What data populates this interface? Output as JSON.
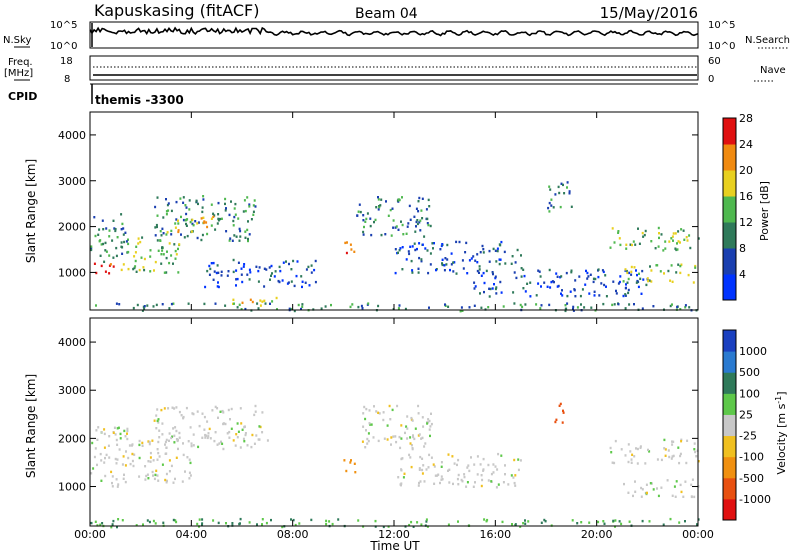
{
  "header": {
    "station": "Kapuskasing (fitACF)",
    "beam": "Beam 04",
    "date": "15/May/2016"
  },
  "summary": {
    "nsky_label": "N.Sky",
    "nsky_ticks": [
      "10^5",
      "10^0"
    ],
    "nsearch_label": "N.Search",
    "nsearch_ticks": [
      "10^5",
      "10^0"
    ],
    "freq_label_1": "Freq.",
    "freq_label_2": "[MHz]",
    "freq_ticks": [
      "18",
      "8"
    ],
    "nave_label": "Nave",
    "nave_ticks": [
      "60",
      "0"
    ],
    "cpid_label": "CPID",
    "cpid_value": "themis -3300"
  },
  "axes": {
    "xlabel": "Time UT",
    "ylabel": "Slant Range [km]",
    "x_ticks": [
      "00:00",
      "04:00",
      "08:00",
      "12:00",
      "16:00",
      "20:00",
      "00:00"
    ],
    "y_ticks": [
      "1000",
      "2000",
      "3000",
      "4000"
    ],
    "xlim_hours": [
      0,
      24
    ],
    "ylim_km": [
      180,
      4500
    ]
  },
  "colorbars": {
    "power": {
      "label": "Power [dB]",
      "ticks": [
        "4",
        "8",
        "12",
        "16",
        "20",
        "24",
        "28"
      ],
      "colors": [
        "#0033ff",
        "#1a3fb0",
        "#2f7a5a",
        "#4fb84f",
        "#e8d020",
        "#f08a10",
        "#e01010"
      ]
    },
    "velocity": {
      "label": "Velocity [m s",
      "label_sup": "-1",
      "label_end": "]",
      "ticks": [
        "1000",
        "500",
        "100",
        "25",
        "-25",
        "-100",
        "-500",
        "-1000"
      ],
      "colors": [
        "#1a40c0",
        "#2a7ad0",
        "#2f7a5a",
        "#5ec84a",
        "#c8c8c8",
        "#f0c020",
        "#f09010",
        "#e85010",
        "#e01010"
      ]
    }
  },
  "chart_data": {
    "type": "heatmap",
    "title": "Kapuskasing (fitACF)   Beam 04   15/May/2016",
    "xlabel": "Time UT",
    "ylabel": "Slant Range [km]",
    "xlim": [
      0,
      24
    ],
    "ylim": [
      180,
      4500
    ],
    "panels": [
      {
        "name": "Power",
        "unit": "dB",
        "colorbar_ticks": [
          4,
          8,
          12,
          16,
          20,
          24,
          28
        ],
        "echo_regions": [
          {
            "t": [
              0.0,
              0.9
            ],
            "r": [
              950,
              1250
            ],
            "level": 28
          },
          {
            "t": [
              0.0,
              1.5
            ],
            "r": [
              1250,
              2300
            ],
            "level": 12
          },
          {
            "t": [
              1.2,
              3.5
            ],
            "r": [
              1000,
              1800
            ],
            "level": 16
          },
          {
            "t": [
              2.5,
              6.5
            ],
            "r": [
              1700,
              2700
            ],
            "level": 12
          },
          {
            "t": [
              3.0,
              5.0
            ],
            "r": [
              1900,
              2300
            ],
            "level": 20
          },
          {
            "t": [
              4.5,
              9.0
            ],
            "r": [
              700,
              1300
            ],
            "level": 8
          },
          {
            "t": [
              5.5,
              7.5
            ],
            "r": [
              300,
              500
            ],
            "level": 20
          },
          {
            "t": [
              10.0,
              10.5
            ],
            "r": [
              1300,
              1700
            ],
            "level": 24
          },
          {
            "t": [
              10.5,
              13.5
            ],
            "r": [
              1800,
              2700
            ],
            "level": 12
          },
          {
            "t": [
              12.0,
              17.0
            ],
            "r": [
              1000,
              1700
            ],
            "level": 8
          },
          {
            "t": [
              15.0,
              22.0
            ],
            "r": [
              500,
              1100
            ],
            "level": 8
          },
          {
            "t": [
              18.0,
              19.0
            ],
            "r": [
              2300,
              3000
            ],
            "level": 12
          },
          {
            "t": [
              20.5,
              24.0
            ],
            "r": [
              1500,
              2000
            ],
            "level": 16
          },
          {
            "t": [
              21.0,
              24.0
            ],
            "r": [
              800,
              1200
            ],
            "level": 16
          },
          {
            "t": [
              0.0,
              24.0
            ],
            "r": [
              180,
              350
            ],
            "level": 12
          }
        ]
      },
      {
        "name": "Velocity",
        "unit": "m s^-1",
        "colorbar_ticks": [
          1000,
          500,
          100,
          25,
          -25,
          -100,
          -500,
          -1000
        ],
        "echo_regions": [
          {
            "t": [
              0.0,
              1.5
            ],
            "r": [
              1000,
              2300
            ],
            "level": 0
          },
          {
            "t": [
              1.2,
              4.0
            ],
            "r": [
              1100,
              2000
            ],
            "level": 0
          },
          {
            "t": [
              2.5,
              7.0
            ],
            "r": [
              1800,
              2700
            ],
            "level": 0
          },
          {
            "t": [
              10.0,
              10.5
            ],
            "r": [
              1300,
              1700
            ],
            "level": -300
          },
          {
            "t": [
              10.5,
              13.5
            ],
            "r": [
              1800,
              2700
            ],
            "level": 0
          },
          {
            "t": [
              12.0,
              17.0
            ],
            "r": [
              1000,
              1700
            ],
            "level": 0
          },
          {
            "t": [
              18.3,
              18.8
            ],
            "r": [
              2300,
              2800
            ],
            "level": -800
          },
          {
            "t": [
              20.5,
              24.0
            ],
            "r": [
              1500,
              2000
            ],
            "level": 0
          },
          {
            "t": [
              21.0,
              24.0
            ],
            "r": [
              800,
              1200
            ],
            "level": 0
          },
          {
            "t": [
              0.0,
              24.0
            ],
            "r": [
              180,
              350
            ],
            "level": 100
          }
        ]
      }
    ]
  }
}
